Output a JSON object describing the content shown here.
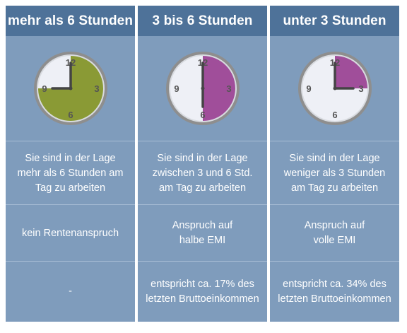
{
  "colors": {
    "header_bg": "#4e7299",
    "column_bg": "#7f9cbc",
    "clock_face": "#eef0f6",
    "clock_rim": "#8e8e8e",
    "sector_green": "#8a9a35",
    "sector_purple": "#a04e9a",
    "hand_color": "#444444"
  },
  "columns": [
    {
      "header": "mehr als 6 Stunden",
      "clock": {
        "filled_from_hour": 0,
        "filled_to_hour": 9,
        "sector_color": "#8a9a35",
        "hour_hand_at": 9,
        "minute_hand_at": 0,
        "labels": [
          "12",
          "3",
          "6",
          "9"
        ]
      },
      "description": "Sie sind in der Lage\nmehr als 6 Stunden am\nTag zu arbeiten",
      "claim": "kein Rentenanspruch",
      "income": "-"
    },
    {
      "header": "3 bis 6 Stunden",
      "clock": {
        "filled_from_hour": 0,
        "filled_to_hour": 6,
        "sector_color": "#a04e9a",
        "hour_hand_at": 6,
        "minute_hand_at": 0,
        "labels": [
          "12",
          "3",
          "6",
          "9"
        ]
      },
      "description": "Sie sind in der Lage\nzwischen 3 und 6 Std.\nam Tag zu arbeiten",
      "claim": "Anspruch auf\nhalbe EMI",
      "income": "entspricht ca. 17% des\nletzten Bruttoeinkommen"
    },
    {
      "header": "unter 3 Stunden",
      "clock": {
        "filled_from_hour": 0,
        "filled_to_hour": 3,
        "sector_color": "#a04e9a",
        "hour_hand_at": 3,
        "minute_hand_at": 0,
        "labels": [
          "12",
          "3",
          "6",
          "9"
        ]
      },
      "description": "Sie sind in der Lage\nweniger als 3 Stunden\nam Tag zu arbeiten",
      "claim": "Anspruch auf\nvolle EMI",
      "income": "entspricht ca. 34% des\nletzten Bruttoeinkommen"
    }
  ]
}
